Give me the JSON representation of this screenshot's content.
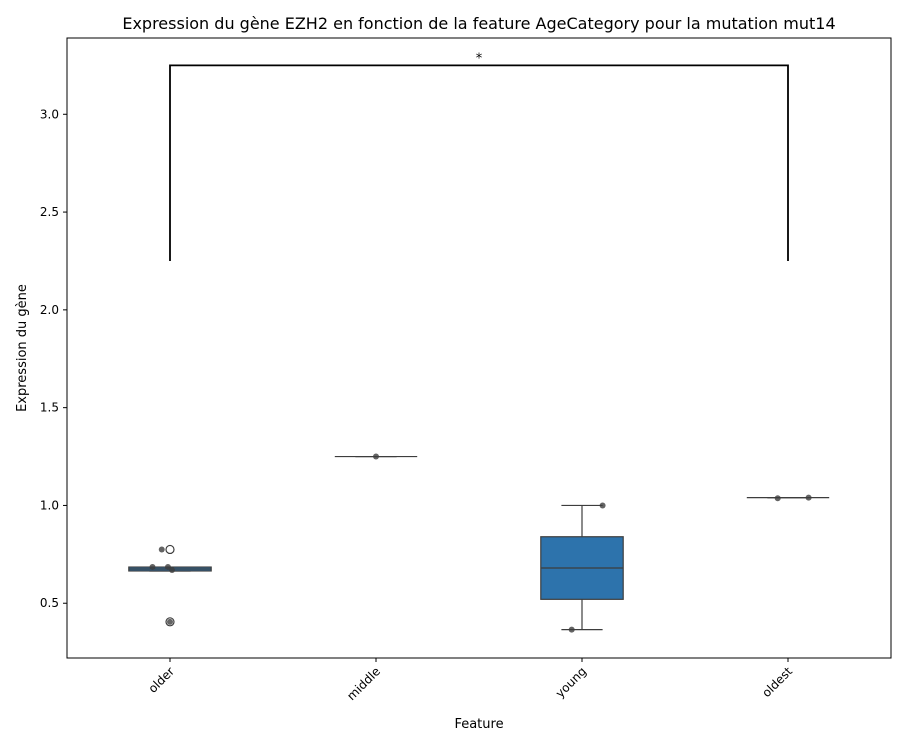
{
  "chart_data": {
    "type": "box",
    "title": "Expression du gène EZH2 en fonction de la feature AgeCategory pour la mutation mut14",
    "xlabel": "Feature",
    "ylabel": "Expression du gène",
    "ylim": [
      0.22,
      3.39
    ],
    "yticks": [
      0.5,
      1.0,
      1.5,
      2.0,
      2.5,
      3.0
    ],
    "ytick_labels": [
      "0.5",
      "1.0",
      "1.5",
      "2.0",
      "2.5",
      "3.0"
    ],
    "categories": [
      "older",
      "middle",
      "young",
      "oldest"
    ],
    "box_color": "#2d73ac",
    "boxes": [
      {
        "category": "older",
        "q1": 0.665,
        "median": 0.675,
        "q3": 0.685,
        "whisker_low": 0.665,
        "whisker_high": 0.685,
        "outliers": [
          0.775,
          0.405
        ],
        "points": [
          0.775,
          0.685,
          0.685,
          0.67,
          0.405
        ]
      },
      {
        "category": "middle",
        "q1": 1.25,
        "median": 1.25,
        "q3": 1.25,
        "whisker_low": 1.25,
        "whisker_high": 1.25,
        "outliers": [],
        "points": [
          1.25
        ]
      },
      {
        "category": "young",
        "q1": 0.52,
        "median": 0.68,
        "q3": 0.84,
        "whisker_low": 0.365,
        "whisker_high": 1.0,
        "outliers": [],
        "points": [
          1.0,
          0.365
        ]
      },
      {
        "category": "oldest",
        "q1": 1.04,
        "median": 1.04,
        "q3": 1.04,
        "whisker_low": 1.04,
        "whisker_high": 1.04,
        "outliers": [],
        "points": [
          1.04,
          1.037
        ]
      }
    ],
    "significance": {
      "from": "older",
      "to": "oldest",
      "y_bottom": 2.25,
      "y_top": 3.25,
      "label": "*"
    },
    "grid": false,
    "legend": "none"
  }
}
